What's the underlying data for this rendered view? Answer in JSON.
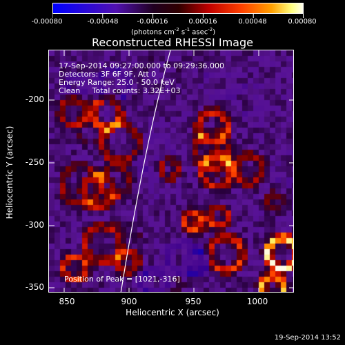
{
  "colorbar": {
    "tick_labels": [
      "-0.00080",
      "-0.00048",
      "-0.00016",
      "0.00016",
      "0.00048",
      "0.00080"
    ],
    "units_prefix": "(photons cm",
    "units_exp1": "-2",
    "units_mid": " s",
    "units_exp2": "-1",
    "units_mid2": " asec",
    "units_exp3": "-2",
    "units_suffix": ")",
    "colors": [
      "#0000ff",
      "#4000a0",
      "#000000",
      "#800000",
      "#ff2000",
      "#ff9000",
      "#ffff60",
      "#ffffff"
    ]
  },
  "title": "Reconstructed RHESSI Image",
  "info": {
    "line1": "17-Sep-2014 09:27:00.000 to 09:29:36.000",
    "line2": "Detectors: 3F 6F 9F, Att 0",
    "line3": "Energy Range: 25.0 - 50.0 keV",
    "line4": "Clean     Total counts: 3.32E+03",
    "peak": "Position of Peak = [1021,-316]"
  },
  "axes": {
    "xlabel": "Heliocentric X (arcsec)",
    "ylabel": "Heliocentric Y (arcsec)",
    "xticks": [
      "850",
      "900",
      "950",
      "1000"
    ],
    "yticks": [
      "-200",
      "-250",
      "-300",
      "-350"
    ],
    "xlim": [
      838,
      1028
    ],
    "ylim": [
      -352,
      -168
    ]
  },
  "timestamp": "19-Sep-2014 13:52",
  "peak_position": [
    1021,
    -316
  ]
}
